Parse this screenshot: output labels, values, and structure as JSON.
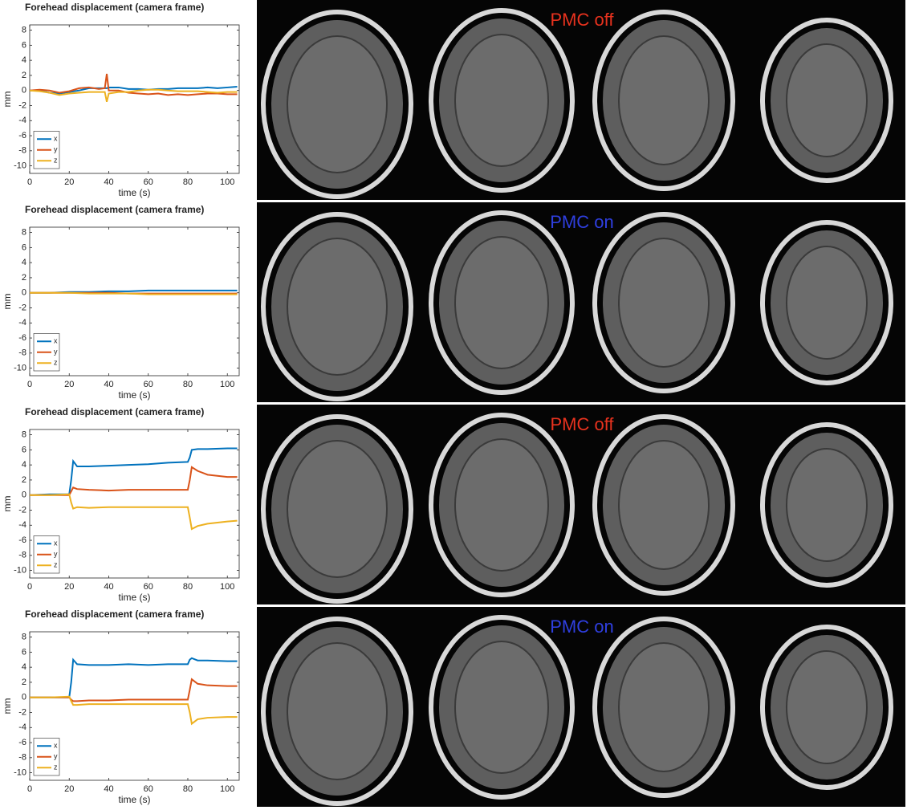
{
  "images": [
    {
      "label": "PMC off",
      "color": "#e8321e"
    },
    {
      "label": "PMC on",
      "color": "#2f3fe0"
    },
    {
      "label": "PMC off",
      "color": "#e8321e"
    },
    {
      "label": "PMC on",
      "color": "#2f3fe0"
    }
  ],
  "chart_data": [
    {
      "type": "line",
      "title": "Forehead displacement (camera frame)",
      "x_label": "time (s)",
      "y_label": "mm",
      "xlim": [
        0,
        106
      ],
      "ylim": [
        -11,
        8.7
      ],
      "xticks": [
        0,
        20,
        40,
        60,
        80,
        100
      ],
      "yticks": [
        -10,
        -8,
        -6,
        -4,
        -2,
        0,
        2,
        4,
        6,
        8
      ],
      "legend": "lower left",
      "x": [
        0,
        5,
        10,
        15,
        20,
        25,
        30,
        35,
        38,
        39,
        40,
        45,
        50,
        55,
        60,
        65,
        70,
        75,
        80,
        85,
        90,
        95,
        100,
        105
      ],
      "series": [
        {
          "name": "x",
          "color": "#0072bd",
          "values": [
            0,
            0,
            -0.3,
            -0.4,
            -0.2,
            0,
            0.3,
            0.3,
            0.3,
            0.3,
            0.4,
            0.4,
            0.2,
            0.2,
            0.1,
            0.2,
            0.2,
            0.3,
            0.3,
            0.3,
            0.4,
            0.3,
            0.4,
            0.5
          ]
        },
        {
          "name": "y",
          "color": "#d95319",
          "values": [
            0,
            0.1,
            0,
            -0.3,
            -0.1,
            0.3,
            0.4,
            0.2,
            0.3,
            2.2,
            0,
            0,
            -0.3,
            -0.4,
            -0.5,
            -0.4,
            -0.6,
            -0.5,
            -0.6,
            -0.5,
            -0.4,
            -0.4,
            -0.5,
            -0.5
          ]
        },
        {
          "name": "z",
          "color": "#edb120",
          "values": [
            0,
            -0.1,
            -0.3,
            -0.6,
            -0.4,
            -0.3,
            -0.2,
            -0.2,
            -0.2,
            -1.5,
            -0.4,
            -0.2,
            -0.2,
            0,
            0.1,
            0.1,
            0,
            -0.1,
            -0.1,
            -0.1,
            -0.2,
            -0.3,
            -0.2,
            -0.2
          ]
        }
      ]
    },
    {
      "type": "line",
      "title": "Forehead displacement (camera frame)",
      "x_label": "time (s)",
      "y_label": "mm",
      "xlim": [
        0,
        106
      ],
      "ylim": [
        -11,
        8.7
      ],
      "xticks": [
        0,
        20,
        40,
        60,
        80,
        100
      ],
      "yticks": [
        -10,
        -8,
        -6,
        -4,
        -2,
        0,
        2,
        4,
        6,
        8
      ],
      "legend": "lower left",
      "x": [
        0,
        10,
        20,
        30,
        40,
        50,
        60,
        70,
        80,
        90,
        100,
        105
      ],
      "series": [
        {
          "name": "x",
          "color": "#0072bd",
          "values": [
            0,
            0,
            0.1,
            0.1,
            0.2,
            0.2,
            0.3,
            0.3,
            0.3,
            0.3,
            0.3,
            0.3
          ]
        },
        {
          "name": "y",
          "color": "#d95319",
          "values": [
            0,
            0,
            0,
            0,
            0,
            -0.1,
            -0.1,
            -0.1,
            -0.1,
            -0.1,
            -0.1,
            -0.1
          ]
        },
        {
          "name": "z",
          "color": "#edb120",
          "values": [
            0,
            0,
            0,
            -0.1,
            -0.1,
            -0.1,
            -0.2,
            -0.2,
            -0.2,
            -0.2,
            -0.2,
            -0.2
          ]
        }
      ]
    },
    {
      "type": "line",
      "title": "Forehead displacement (camera frame)",
      "x_label": "time (s)",
      "y_label": "mm",
      "xlim": [
        0,
        106
      ],
      "ylim": [
        -11,
        8.7
      ],
      "xticks": [
        0,
        20,
        40,
        60,
        80,
        100
      ],
      "yticks": [
        -10,
        -8,
        -6,
        -4,
        -2,
        0,
        2,
        4,
        6,
        8
      ],
      "legend": "lower left",
      "x": [
        0,
        10,
        20,
        21,
        22,
        24,
        30,
        40,
        50,
        60,
        70,
        80,
        81,
        82,
        85,
        90,
        100,
        105
      ],
      "series": [
        {
          "name": "x",
          "color": "#0072bd",
          "values": [
            0,
            0.1,
            0.1,
            2,
            4.5,
            3.8,
            3.8,
            3.9,
            4,
            4.1,
            4.3,
            4.4,
            5,
            6,
            6.1,
            6.1,
            6.2,
            6.2
          ]
        },
        {
          "name": "y",
          "color": "#d95319",
          "values": [
            0,
            0,
            0,
            0.5,
            1,
            0.8,
            0.7,
            0.6,
            0.7,
            0.7,
            0.7,
            0.7,
            2,
            3.7,
            3.2,
            2.7,
            2.4,
            2.4
          ]
        },
        {
          "name": "z",
          "color": "#edb120",
          "values": [
            0,
            0,
            0.1,
            -1,
            -1.8,
            -1.6,
            -1.7,
            -1.6,
            -1.6,
            -1.6,
            -1.6,
            -1.6,
            -3,
            -4.5,
            -4.1,
            -3.8,
            -3.5,
            -3.4
          ]
        }
      ]
    },
    {
      "type": "line",
      "title": "Forehead displacement (camera frame)",
      "x_label": "time (s)",
      "y_label": "mm",
      "xlim": [
        0,
        106
      ],
      "ylim": [
        -11,
        8.7
      ],
      "xticks": [
        0,
        20,
        40,
        60,
        80,
        100
      ],
      "yticks": [
        -10,
        -8,
        -6,
        -4,
        -2,
        0,
        2,
        4,
        6,
        8
      ],
      "legend": "lower left",
      "x": [
        0,
        10,
        20,
        21,
        22,
        24,
        30,
        40,
        50,
        60,
        70,
        80,
        81,
        82,
        85,
        90,
        100,
        105
      ],
      "series": [
        {
          "name": "x",
          "color": "#0072bd",
          "values": [
            0,
            0,
            0,
            2,
            5,
            4.4,
            4.3,
            4.3,
            4.4,
            4.3,
            4.4,
            4.4,
            5,
            5.2,
            4.9,
            4.9,
            4.8,
            4.8
          ]
        },
        {
          "name": "y",
          "color": "#d95319",
          "values": [
            0,
            0,
            0,
            -0.3,
            -0.5,
            -0.5,
            -0.4,
            -0.4,
            -0.3,
            -0.3,
            -0.3,
            -0.3,
            1,
            2.4,
            1.8,
            1.6,
            1.5,
            1.5
          ]
        },
        {
          "name": "z",
          "color": "#edb120",
          "values": [
            0,
            0,
            0.1,
            -0.5,
            -1,
            -1,
            -0.9,
            -0.9,
            -0.9,
            -0.9,
            -0.9,
            -0.9,
            -2,
            -3.5,
            -2.9,
            -2.7,
            -2.6,
            -2.6
          ]
        }
      ]
    }
  ]
}
